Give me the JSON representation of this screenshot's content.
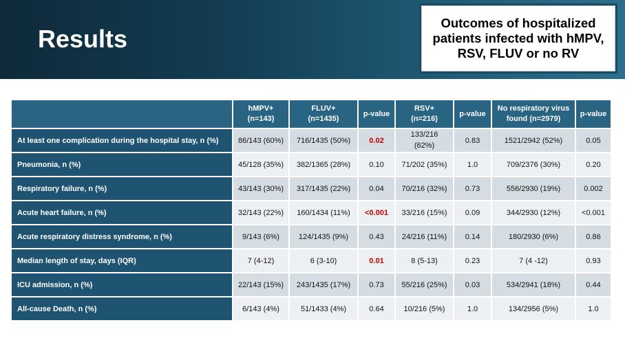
{
  "title": "Results",
  "subtitle": "Outcomes of hospitalized patients infected with hMPV, RSV, FLUV or no RV",
  "table": {
    "headers": [
      "",
      "hMPV+\n(n=143)",
      "FLUV+\n(n=1435)",
      "p-value",
      "RSV+\n(n=216)",
      "p-value",
      "No respiratory virus\nfound (n=2979)",
      "p-value"
    ],
    "rows": [
      {
        "label": "At least one complication during the hospital stay, n (%)",
        "cells": [
          "86/143 (60%)",
          "716/1435 (50%)",
          "0.02",
          "133/216\n(62%)",
          "0.83",
          "1521/2942 (52%)",
          "0.05"
        ],
        "sig": [
          2
        ]
      },
      {
        "label": "Pneumonia, n (%)",
        "cells": [
          "45/128 (35%)",
          "382/1365 (28%)",
          "0.10",
          "71/202 (35%)",
          "1.0",
          "709/2376 (30%)",
          "0.20"
        ],
        "sig": []
      },
      {
        "label": "Respiratory failure, n (%)",
        "cells": [
          "43/143 (30%)",
          "317/1435 (22%)",
          "0.04",
          "70/216 (32%)",
          "0.73",
          "556/2930 (19%)",
          "0.002"
        ],
        "sig": []
      },
      {
        "label": "Acute heart failure, n (%)",
        "cells": [
          "32/143 (22%)",
          "160/1434 (11%)",
          "<0.001",
          "33/216 (15%)",
          "0.09",
          "344/2930 (12%)",
          "<0.001"
        ],
        "sig": [
          2
        ]
      },
      {
        "label": "Acute respiratory distress syndrome, n (%)",
        "cells": [
          "9/143 (6%)",
          "124/1435 (9%)",
          "0.43",
          "24/216 (11%)",
          "0.14",
          "180/2930 (6%)",
          "0.86"
        ],
        "sig": []
      },
      {
        "label": "Median length of stay, days (IQR)",
        "cells": [
          "7 (4-12)",
          "6 (3-10)",
          "0.01",
          "8 (5-13)",
          "0.23",
          "7 (4 -12)",
          "0.93"
        ],
        "sig": [
          2
        ]
      },
      {
        "label": "ICU admission, n (%)",
        "cells": [
          "22/143 (15%)",
          "243/1435 (17%)",
          "0.73",
          "55/216 (25%)",
          "0.03",
          "534/2941 (18%)",
          "0.44"
        ],
        "sig": []
      },
      {
        "label": "All-cause Death, n (%)",
        "cells": [
          "6/143 (4%)",
          "51/1433 (4%)",
          "0.64",
          "10/216 (5%)",
          "1.0",
          "134/2956 (5%)",
          "1.0"
        ],
        "sig": []
      }
    ]
  },
  "colors": {
    "header_bg": "#2a6483",
    "label_bg": "#1e5472",
    "row_odd": "#d5dde3",
    "row_even": "#ecf0f3",
    "significant": "#c00000"
  }
}
